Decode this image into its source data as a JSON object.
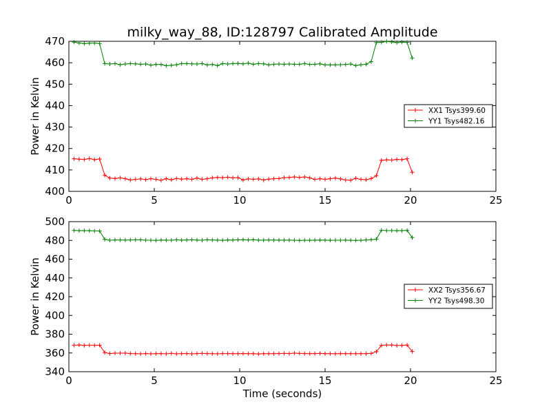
{
  "chart_data": [
    {
      "type": "line",
      "title": "milky_way_88, ID:128797 Calibrated Amplitude",
      "xlabel": "",
      "ylabel": "Power in Kelvin",
      "xlim": [
        0,
        25
      ],
      "ylim": [
        400,
        470
      ],
      "xticks": [
        0,
        5,
        10,
        15,
        20,
        25
      ],
      "yticks": [
        400,
        410,
        420,
        430,
        440,
        450,
        460,
        470
      ],
      "grid": false,
      "legend_position": "center-right",
      "x": [
        0.3,
        0.6,
        0.9,
        1.2,
        1.5,
        1.8,
        2.1,
        2.4,
        2.7,
        3.0,
        3.3,
        3.6,
        3.9,
        4.2,
        4.5,
        4.8,
        5.1,
        5.4,
        5.7,
        6.0,
        6.3,
        6.6,
        6.9,
        7.2,
        7.5,
        7.8,
        8.1,
        8.4,
        8.7,
        9.0,
        9.3,
        9.6,
        9.9,
        10.2,
        10.5,
        10.8,
        11.1,
        11.4,
        11.7,
        12.0,
        12.3,
        12.6,
        12.9,
        13.2,
        13.5,
        13.8,
        14.1,
        14.4,
        14.7,
        15.0,
        15.3,
        15.6,
        15.9,
        16.2,
        16.5,
        16.8,
        17.1,
        17.4,
        17.7,
        18.0,
        18.3,
        18.6,
        18.9,
        19.2,
        19.5,
        19.8,
        20.1
      ],
      "series": [
        {
          "name": "XX1 Tsys399.60",
          "color": "#ff0000",
          "values": [
            415.2,
            415.0,
            414.9,
            415.3,
            414.8,
            415.1,
            407.5,
            406.2,
            406.0,
            406.3,
            405.9,
            405.3,
            405.6,
            405.8,
            405.5,
            405.9,
            405.6,
            405.2,
            405.9,
            405.4,
            406.0,
            405.7,
            405.9,
            405.6,
            406.2,
            405.6,
            405.9,
            406.3,
            406.5,
            406.4,
            406.6,
            406.3,
            406.4,
            405.3,
            405.8,
            405.6,
            405.8,
            405.3,
            405.7,
            405.9,
            406.0,
            406.4,
            406.5,
            406.7,
            406.5,
            406.7,
            406.3,
            405.6,
            405.9,
            405.6,
            405.9,
            406.2,
            405.8,
            405.3,
            405.2,
            406.1,
            405.6,
            405.4,
            406.0,
            407.3,
            414.5,
            414.7,
            414.6,
            414.9,
            414.8,
            415.2,
            408.9
          ]
        },
        {
          "name": "YY1 Tsys482.16",
          "color": "#008000",
          "values": [
            469.6,
            469.2,
            468.9,
            469.1,
            469.2,
            468.9,
            459.6,
            459.4,
            459.6,
            459.1,
            459.4,
            459.6,
            459.5,
            459.3,
            459.4,
            458.9,
            459.2,
            459.2,
            458.6,
            458.8,
            459.1,
            459.6,
            459.6,
            459.5,
            459.4,
            459.6,
            459.0,
            459.2,
            458.7,
            459.6,
            459.4,
            459.6,
            459.7,
            459.5,
            459.8,
            459.3,
            459.6,
            459.5,
            459.0,
            459.3,
            459.4,
            459.3,
            459.4,
            459.3,
            459.3,
            459.6,
            459.2,
            459.3,
            459.5,
            459.0,
            459.0,
            459.0,
            459.1,
            459.2,
            459.4,
            458.7,
            459.1,
            459.3,
            460.5,
            469.4,
            469.5,
            469.9,
            469.7,
            469.4,
            469.6,
            469.5,
            462.2
          ]
        }
      ]
    },
    {
      "type": "line",
      "title": "",
      "xlabel": "Time (seconds)",
      "ylabel": "Power in Kelvin",
      "xlim": [
        0,
        25
      ],
      "ylim": [
        340,
        500
      ],
      "xticks": [
        0,
        5,
        10,
        15,
        20,
        25
      ],
      "yticks": [
        340,
        360,
        380,
        400,
        420,
        440,
        460,
        480,
        500
      ],
      "grid": false,
      "legend_position": "center-right",
      "x": [
        0.3,
        0.6,
        0.9,
        1.2,
        1.5,
        1.8,
        2.1,
        2.4,
        2.7,
        3.0,
        3.3,
        3.6,
        3.9,
        4.2,
        4.5,
        4.8,
        5.1,
        5.4,
        5.7,
        6.0,
        6.3,
        6.6,
        6.9,
        7.2,
        7.5,
        7.8,
        8.1,
        8.4,
        8.7,
        9.0,
        9.3,
        9.6,
        9.9,
        10.2,
        10.5,
        10.8,
        11.1,
        11.4,
        11.7,
        12.0,
        12.3,
        12.6,
        12.9,
        13.2,
        13.5,
        13.8,
        14.1,
        14.4,
        14.7,
        15.0,
        15.3,
        15.6,
        15.9,
        16.2,
        16.5,
        16.8,
        17.1,
        17.4,
        17.7,
        18.0,
        18.3,
        18.6,
        18.9,
        19.2,
        19.5,
        19.8,
        20.1
      ],
      "series": [
        {
          "name": "XX2 Tsys356.67",
          "color": "#ff0000",
          "values": [
            368.3,
            368.4,
            368.1,
            368.3,
            368.2,
            368.3,
            360.4,
            359.4,
            359.8,
            359.8,
            359.8,
            359.4,
            359.3,
            359.1,
            359.4,
            359.1,
            359.3,
            359.4,
            359.1,
            359.5,
            359.1,
            359.4,
            359.4,
            359.1,
            359.4,
            359.5,
            359.4,
            359.3,
            359.1,
            359.4,
            359.4,
            359.3,
            359.3,
            359.4,
            359.3,
            359.3,
            358.9,
            359.3,
            359.3,
            359.3,
            359.4,
            359.5,
            359.4,
            359.8,
            359.5,
            359.4,
            359.3,
            359.4,
            359.5,
            359.3,
            359.3,
            359.2,
            359.4,
            359.3,
            359.3,
            359.3,
            359.3,
            359.3,
            359.5,
            361.4,
            368.1,
            368.4,
            368.4,
            367.9,
            368.1,
            368.4,
            361.6
          ]
        },
        {
          "name": "YY2 Tsys498.30",
          "color": "#008000",
          "values": [
            490.6,
            490.4,
            490.4,
            490.4,
            490.1,
            490.0,
            481.1,
            480.2,
            480.5,
            480.5,
            480.4,
            480.5,
            480.6,
            480.6,
            480.3,
            480.2,
            480.0,
            480.4,
            480.3,
            480.2,
            480.6,
            480.3,
            480.5,
            480.6,
            480.4,
            480.2,
            480.6,
            480.5,
            480.3,
            480.1,
            480.5,
            480.4,
            480.6,
            480.7,
            480.5,
            480.7,
            480.3,
            480.3,
            480.5,
            480.4,
            480.3,
            480.3,
            480.3,
            480.2,
            479.9,
            480.2,
            480.1,
            480.3,
            480.4,
            480.3,
            480.1,
            480.2,
            480.2,
            480.3,
            480.1,
            480.0,
            480.1,
            480.5,
            480.7,
            481.3,
            490.8,
            490.5,
            490.5,
            490.4,
            490.4,
            490.7,
            483.0
          ]
        }
      ]
    }
  ]
}
